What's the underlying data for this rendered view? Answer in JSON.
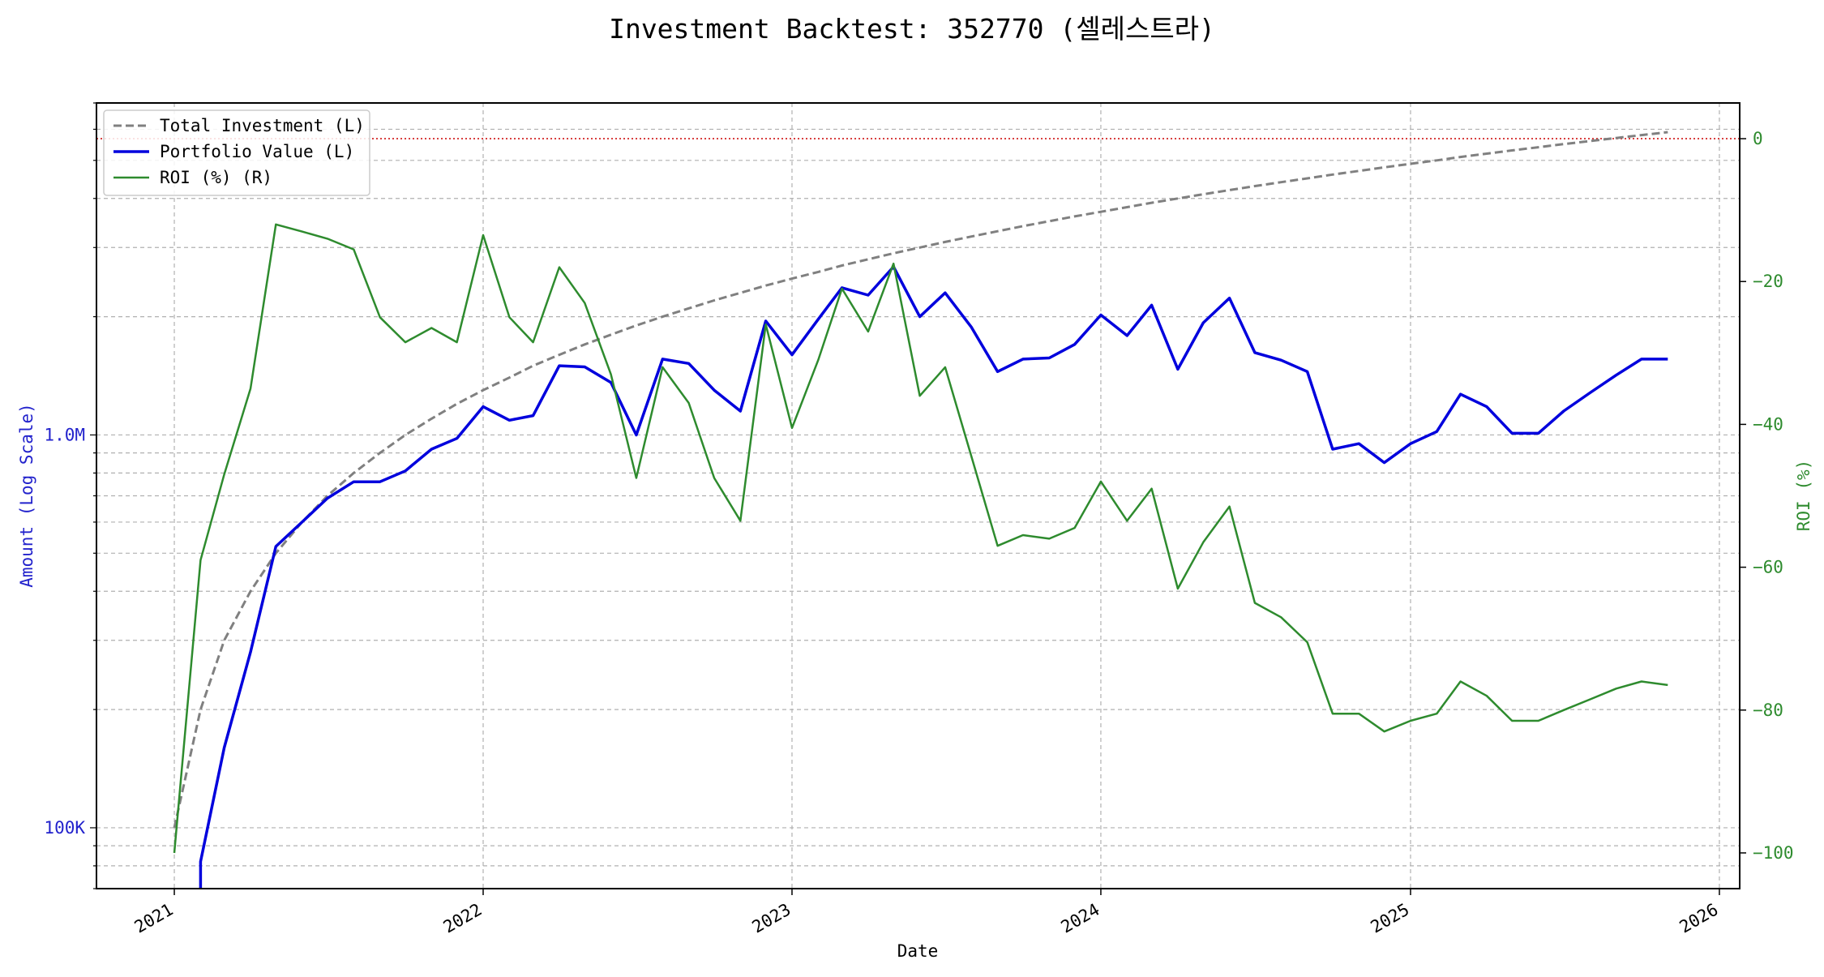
{
  "chart_data": {
    "type": "line",
    "title": "Investment Backtest: 352770 (셀레스트라)",
    "xlabel": "Date",
    "ylabel_left": "Amount (Log Scale)",
    "ylabel_right": "ROI (%)",
    "x_ticks": [
      "2021",
      "2022",
      "2023",
      "2024",
      "2025",
      "2026"
    ],
    "left_scale": "log",
    "left_ylim": [
      70000,
      7000000
    ],
    "left_ticks": [
      {
        "value": 100000,
        "label": "100K"
      },
      {
        "value": 1000000,
        "label": "1.0M"
      }
    ],
    "right_ylim": [
      -105,
      5
    ],
    "right_ticks": [
      {
        "value": 0,
        "label": "0"
      },
      {
        "value": -20,
        "label": "−20"
      },
      {
        "value": -40,
        "label": "−40"
      },
      {
        "value": -60,
        "label": "−60"
      },
      {
        "value": -80,
        "label": "−80"
      },
      {
        "value": -100,
        "label": "−100"
      }
    ],
    "x_range": [
      "2020-10-01",
      "2026-01-25"
    ],
    "grid": true,
    "legend_position": "top-left",
    "reference_line": {
      "axis": "right",
      "value": 0,
      "color": "#cc0000",
      "style": "dotted"
    },
    "colors": {
      "total_investment": "#808080",
      "portfolio_value": "#0000dd",
      "roi": "#2e8b2e",
      "left_axis": "#2222cc",
      "right_axis": "#2e8b2e"
    },
    "series": [
      {
        "name": "Total Investment (L)",
        "axis": "left",
        "style": "dashed",
        "x": [
          "2021-01-01",
          "2021-02-01",
          "2021-03-01",
          "2021-04-01",
          "2021-05-01",
          "2021-06-01",
          "2021-07-01",
          "2021-08-01",
          "2021-09-01",
          "2021-10-01",
          "2021-11-01",
          "2021-12-01",
          "2022-01-01",
          "2022-02-01",
          "2022-03-01",
          "2022-04-01",
          "2022-05-01",
          "2022-06-01",
          "2022-07-01",
          "2022-08-01",
          "2022-09-01",
          "2022-10-01",
          "2022-11-01",
          "2022-12-01",
          "2023-01-01",
          "2023-02-01",
          "2023-03-01",
          "2023-04-01",
          "2023-05-01",
          "2023-06-01",
          "2023-07-01",
          "2023-08-01",
          "2023-09-01",
          "2023-10-01",
          "2023-11-01",
          "2023-12-01",
          "2024-01-01",
          "2024-02-01",
          "2024-03-01",
          "2024-04-01",
          "2024-05-01",
          "2024-06-01",
          "2024-07-01",
          "2024-08-01",
          "2024-09-01",
          "2024-10-01",
          "2024-11-01",
          "2024-12-01",
          "2025-01-01",
          "2025-02-01",
          "2025-03-01",
          "2025-04-01",
          "2025-05-01",
          "2025-06-01",
          "2025-07-01",
          "2025-08-01",
          "2025-09-01",
          "2025-10-01",
          "2025-11-01"
        ],
        "values": [
          100000,
          200000,
          300000,
          400000,
          500000,
          600000,
          700000,
          800000,
          900000,
          1000000,
          1100000,
          1200000,
          1300000,
          1400000,
          1500000,
          1600000,
          1700000,
          1800000,
          1900000,
          2000000,
          2100000,
          2200000,
          2300000,
          2400000,
          2500000,
          2600000,
          2700000,
          2800000,
          2900000,
          3000000,
          3100000,
          3200000,
          3300000,
          3400000,
          3500000,
          3600000,
          3700000,
          3800000,
          3900000,
          4000000,
          4100000,
          4200000,
          4300000,
          4400000,
          4500000,
          4600000,
          4700000,
          4800000,
          4900000,
          5000000,
          5100000,
          5200000,
          5300000,
          5400000,
          5500000,
          5600000,
          5700000,
          5800000,
          5900000
        ]
      },
      {
        "name": "Portfolio Value (L)",
        "axis": "left",
        "style": "solid",
        "x": [
          "2021-02-01",
          "2021-03-01",
          "2021-04-01",
          "2021-05-01",
          "2021-06-01",
          "2021-07-01",
          "2021-08-01",
          "2021-09-01",
          "2021-10-01",
          "2021-11-01",
          "2021-12-01",
          "2022-01-01",
          "2022-02-01",
          "2022-03-01",
          "2022-04-01",
          "2022-05-01",
          "2022-06-01",
          "2022-07-01",
          "2022-08-01",
          "2022-09-01",
          "2022-10-01",
          "2022-11-01",
          "2022-12-01",
          "2023-01-01",
          "2023-02-01",
          "2023-03-01",
          "2023-04-01",
          "2023-05-01",
          "2023-06-01",
          "2023-07-01",
          "2023-08-01",
          "2023-09-01",
          "2023-10-01",
          "2023-11-01",
          "2023-12-01",
          "2024-01-01",
          "2024-02-01",
          "2024-03-01",
          "2024-04-01",
          "2024-05-01",
          "2024-06-01",
          "2024-07-01",
          "2024-08-01",
          "2024-09-01",
          "2024-10-01",
          "2024-11-01",
          "2024-12-01",
          "2025-01-01",
          "2025-02-01",
          "2025-03-01",
          "2025-04-01",
          "2025-05-01",
          "2025-06-01",
          "2025-07-01",
          "2025-08-01",
          "2025-09-01",
          "2025-10-01",
          "2025-11-01"
        ],
        "values": [
          82000,
          160000,
          280000,
          520000,
          600000,
          690000,
          760000,
          760000,
          810000,
          920000,
          980000,
          1180000,
          1090000,
          1120000,
          1500000,
          1490000,
          1360000,
          1000000,
          1560000,
          1520000,
          1300000,
          1150000,
          1950000,
          1600000,
          1970000,
          2370000,
          2270000,
          2680000,
          2000000,
          2300000,
          1880000,
          1450000,
          1560000,
          1570000,
          1700000,
          2020000,
          1790000,
          2140000,
          1470000,
          1930000,
          2230000,
          1620000,
          1550000,
          1450000,
          920000,
          950000,
          850000,
          950000,
          1020000,
          1270000,
          1180000,
          1010000,
          1010000,
          1150000,
          1280000,
          1420000,
          1560000,
          1560000
        ]
      },
      {
        "name": "ROI (%) (R)",
        "axis": "right",
        "style": "solid",
        "x": [
          "2021-01-01",
          "2021-02-01",
          "2021-03-01",
          "2021-04-01",
          "2021-05-01",
          "2021-06-01",
          "2021-07-01",
          "2021-08-01",
          "2021-09-01",
          "2021-10-01",
          "2021-11-01",
          "2021-12-01",
          "2022-01-01",
          "2022-02-01",
          "2022-03-01",
          "2022-04-01",
          "2022-05-01",
          "2022-06-01",
          "2022-07-01",
          "2022-08-01",
          "2022-09-01",
          "2022-10-01",
          "2022-11-01",
          "2022-12-01",
          "2023-01-01",
          "2023-02-01",
          "2023-03-01",
          "2023-04-01",
          "2023-05-01",
          "2023-06-01",
          "2023-07-01",
          "2023-08-01",
          "2023-09-01",
          "2023-10-01",
          "2023-11-01",
          "2023-12-01",
          "2024-01-01",
          "2024-02-01",
          "2024-03-01",
          "2024-04-01",
          "2024-05-01",
          "2024-06-01",
          "2024-07-01",
          "2024-08-01",
          "2024-09-01",
          "2024-10-01",
          "2024-11-01",
          "2024-12-01",
          "2025-01-01",
          "2025-02-01",
          "2025-03-01",
          "2025-04-01",
          "2025-05-01",
          "2025-06-01",
          "2025-07-01",
          "2025-08-01",
          "2025-09-01",
          "2025-10-01",
          "2025-11-01"
        ],
        "values": [
          -100,
          -59,
          -47,
          -35,
          -12,
          -13,
          -14,
          -15.5,
          -25,
          -28.5,
          -26.5,
          -28.5,
          -13.5,
          -25,
          -28.5,
          -18,
          -23,
          -33,
          -47.5,
          -32,
          -37,
          -47.5,
          -53.5,
          -26,
          -40.5,
          -31,
          -21,
          -27,
          -17.5,
          -36,
          -32,
          -44.5,
          -57,
          -55.5,
          -56,
          -54.5,
          -48,
          -53.5,
          -49,
          -63,
          -56.5,
          -51.5,
          -65,
          -67,
          -70.5,
          -80.5,
          -80.5,
          -83,
          -81.5,
          -80.5,
          -76,
          -78,
          -81.5,
          -81.5,
          -80,
          -78.5,
          -77,
          -76,
          -76.5
        ]
      }
    ]
  }
}
